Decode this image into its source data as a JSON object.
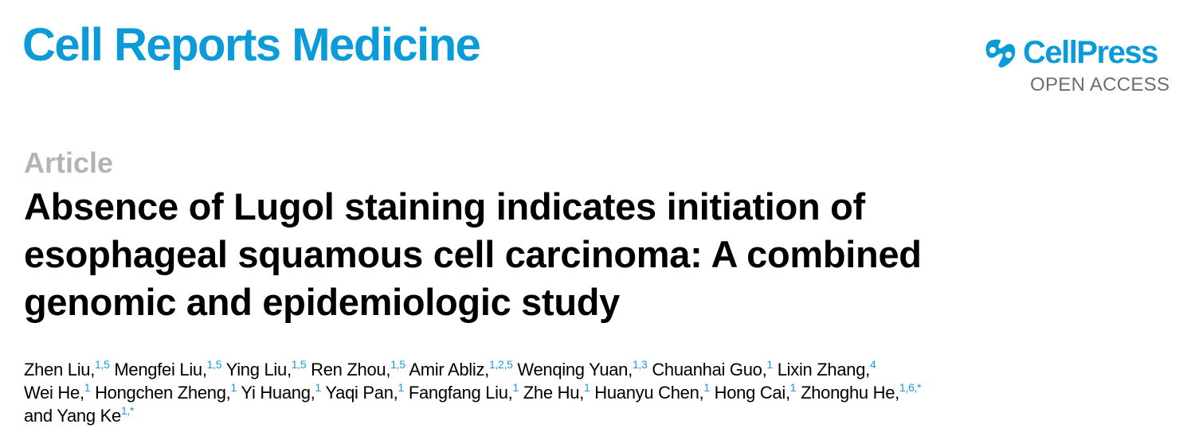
{
  "journal": {
    "name": "Cell Reports Medicine"
  },
  "publisher": {
    "logo_text": "CellPress",
    "access_label": "OPEN ACCESS",
    "brand_color": "#0a9bd8"
  },
  "article": {
    "type_label": "Article",
    "title_lines": [
      "Absence of Lugol staining indicates initiation of",
      "esophageal squamous cell carcinoma: A combined",
      "genomic and epidemiologic study"
    ],
    "author_lines": [
      [
        {
          "name": "Zhen Liu,",
          "sup": "1,5"
        },
        {
          "name": "Mengfei Liu,",
          "sup": "1,5"
        },
        {
          "name": "Ying Liu,",
          "sup": "1,5"
        },
        {
          "name": "Ren Zhou,",
          "sup": "1,5"
        },
        {
          "name": "Amir Abliz,",
          "sup": "1,2,5"
        },
        {
          "name": "Wenqing Yuan,",
          "sup": "1,3"
        },
        {
          "name": "Chuanhai Guo,",
          "sup": "1"
        },
        {
          "name": "Lixin Zhang,",
          "sup": "4"
        }
      ],
      [
        {
          "name": "Wei He,",
          "sup": "1"
        },
        {
          "name": "Hongchen Zheng,",
          "sup": "1"
        },
        {
          "name": "Yi Huang,",
          "sup": "1"
        },
        {
          "name": "Yaqi Pan,",
          "sup": "1"
        },
        {
          "name": "Fangfang Liu,",
          "sup": "1"
        },
        {
          "name": "Zhe Hu,",
          "sup": "1"
        },
        {
          "name": "Huanyu Chen,",
          "sup": "1"
        },
        {
          "name": "Hong Cai,",
          "sup": "1"
        },
        {
          "name": "Zhonghu He,",
          "sup": "1,6,*"
        }
      ],
      [
        {
          "name": "and Yang Ke",
          "sup": "1,*"
        }
      ]
    ]
  }
}
